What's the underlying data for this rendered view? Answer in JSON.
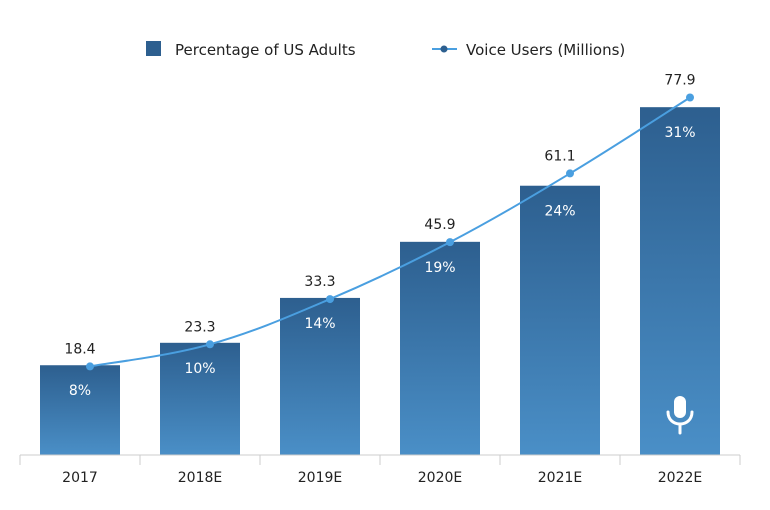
{
  "chart_data": {
    "type": "bar",
    "title": "",
    "xlabel": "",
    "ylabel": "",
    "categories": [
      "2017",
      "2018E",
      "2019E",
      "2020E",
      "2021E",
      "2022E"
    ],
    "series": [
      {
        "name": "Percentage of US Adults",
        "kind": "bar",
        "values": [
          8,
          10,
          14,
          19,
          24,
          31
        ],
        "labels": [
          "8%",
          "10%",
          "14%",
          "19%",
          "24%",
          "31%"
        ]
      },
      {
        "name": "Voice Users (Millions)",
        "kind": "line",
        "values": [
          18.4,
          23.3,
          33.3,
          45.9,
          61.1,
          77.9
        ],
        "labels": [
          "18.4",
          "23.3",
          "33.3",
          "45.9",
          "61.1",
          "77.9"
        ]
      }
    ],
    "legend_position": "top-center",
    "grid": false,
    "colors": {
      "bar_top": "#2d5f8f",
      "bar_bottom": "#4a8fc7",
      "line": "#4a9fe0",
      "axis": "#cccccc",
      "text": "#222222"
    },
    "annotations": [
      {
        "category": "2022E",
        "icon": "microphone-icon"
      }
    ]
  }
}
